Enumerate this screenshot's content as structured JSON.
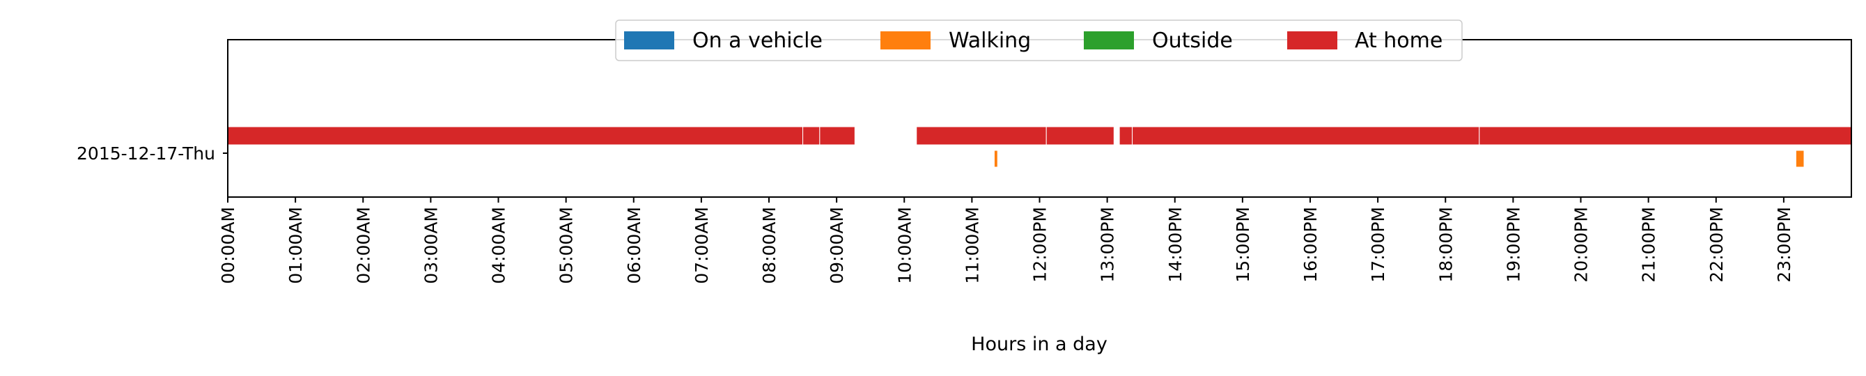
{
  "chart_data": {
    "type": "timeline",
    "title": "",
    "xlabel": "Hours in a day",
    "ylabel": "",
    "xlim": [
      0,
      24
    ],
    "x_tick_values": [
      0,
      1,
      2,
      3,
      4,
      5,
      6,
      7,
      8,
      9,
      10,
      11,
      12,
      13,
      14,
      15,
      16,
      17,
      18,
      19,
      20,
      21,
      22,
      23
    ],
    "x_tick_labels": [
      "00:00AM",
      "01:00AM",
      "02:00AM",
      "03:00AM",
      "04:00AM",
      "05:00AM",
      "06:00AM",
      "07:00AM",
      "08:00AM",
      "09:00AM",
      "10:00AM",
      "11:00AM",
      "12:00PM",
      "13:00PM",
      "14:00PM",
      "15:00PM",
      "16:00PM",
      "17:00PM",
      "18:00PM",
      "19:00PM",
      "20:00PM",
      "21:00PM",
      "22:00PM",
      "23:00PM"
    ],
    "rows": [
      "2015-12-17-Thu"
    ],
    "legend_position": "top-center",
    "grid": false,
    "series": [
      {
        "name": "On a vehicle",
        "color": "#1f77b4",
        "intervals": []
      },
      {
        "name": "Walking",
        "color": "#ff7f0e",
        "intervals": [
          [
            11.33,
            11.38
          ],
          [
            23.18,
            23.3
          ]
        ]
      },
      {
        "name": "Outside",
        "color": "#2ca02c",
        "intervals": []
      },
      {
        "name": "At home",
        "color": "#d62728",
        "intervals": [
          [
            0,
            8.5
          ],
          [
            8.5,
            8.75
          ],
          [
            8.75,
            9.27
          ],
          [
            10.18,
            12.1
          ],
          [
            12.1,
            13.1
          ],
          [
            13.18,
            13.37
          ],
          [
            13.37,
            18.5
          ],
          [
            18.5,
            24
          ]
        ]
      }
    ]
  }
}
